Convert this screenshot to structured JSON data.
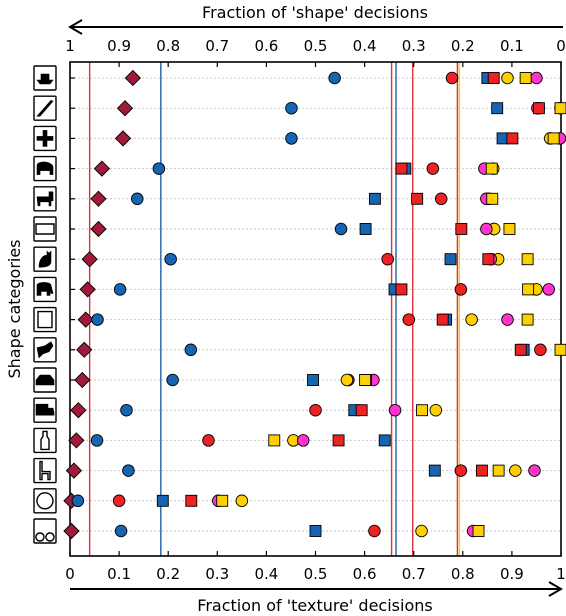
{
  "chart_data": {
    "type": "scatter",
    "top_axis_label": "Fraction of 'shape' decisions",
    "bottom_axis_label": "Fraction of 'texture' decisions",
    "ylabel": "Shape categories",
    "xlim": [
      0,
      1
    ],
    "top_axis_reversed": true,
    "top_ticks": [
      "1",
      "0.9",
      "0.8",
      "0.7",
      "0.6",
      "0.5",
      "0.4",
      "0.3",
      "0.2",
      "0.1",
      "0"
    ],
    "bottom_ticks": [
      "0",
      "0.1",
      "0.2",
      "0.3",
      "0.4",
      "0.5",
      "0.6",
      "0.7",
      "0.8",
      "0.9",
      "1"
    ],
    "grid": "horizontal dotted",
    "categories": [
      "boat",
      "knife",
      "airplane",
      "bear",
      "dog",
      "keyboard",
      "cat",
      "elephant",
      "oven",
      "bird",
      "car",
      "truck",
      "bottle",
      "chair",
      "clock",
      "bicycle"
    ],
    "category_icons": [
      "boat-icon",
      "knife-icon",
      "airplane-icon",
      "bear-icon",
      "dog-icon",
      "keyboard-icon",
      "cat-icon",
      "elephant-icon",
      "oven-icon",
      "bird-icon",
      "car-icon",
      "truck-icon",
      "bottle-icon",
      "chair-icon",
      "clock-icon",
      "bicycle-icon"
    ],
    "colors": {
      "diamond": "#9e1b3c",
      "blue": "#1565b3",
      "red": "#ee2222",
      "yellow": "#ffd000",
      "magenta": "#ff33cc",
      "red_line": "#e0303a",
      "blue_line": "#1f5fa8",
      "yellow_line": "#ffd000",
      "grid": "#cccccc"
    },
    "mean_lines": [
      {
        "x": 0.04,
        "color": "red_line"
      },
      {
        "x": 0.185,
        "color": "blue_line"
      },
      {
        "x": 0.655,
        "color": "red_line"
      },
      {
        "x": 0.664,
        "color": "blue_line"
      },
      {
        "x": 0.698,
        "color": "red_line"
      },
      {
        "x": 0.789,
        "color": "red_line"
      },
      {
        "x": 0.793,
        "color": "yellow_line"
      }
    ],
    "series": [
      {
        "marker": "diamond",
        "color": "diamond",
        "values": [
          0.128,
          0.112,
          0.108,
          0.065,
          0.058,
          0.058,
          0.04,
          0.036,
          0.032,
          0.029,
          0.025,
          0.017,
          0.013,
          0.008,
          0.003,
          0.003
        ]
      },
      {
        "marker": "circle",
        "color": "blue",
        "values": [
          0.539,
          0.451,
          0.451,
          0.181,
          0.137,
          0.552,
          0.205,
          0.102,
          0.056,
          0.246,
          0.209,
          0.115,
          0.055,
          0.119,
          0.016,
          0.104
        ]
      },
      {
        "marker": "circle",
        "color": "red",
        "values": [
          0.778,
          0.955,
          null,
          0.739,
          0.756,
          0.863,
          0.647,
          0.796,
          0.69,
          0.958,
          0.567,
          0.5,
          0.282,
          0.796,
          0.1,
          0.62
        ]
      },
      {
        "marker": "circle",
        "color": "yellow",
        "values": [
          0.891,
          0.999,
          0.978,
          0.862,
          0.854,
          0.864,
          0.872,
          0.95,
          0.818,
          null,
          0.564,
          0.745,
          0.455,
          0.907,
          0.35,
          0.716
        ]
      },
      {
        "marker": "circle",
        "color": "magenta",
        "values": [
          0.95,
          0.952,
          0.998,
          0.844,
          0.848,
          0.848,
          0.857,
          0.975,
          0.891,
          null,
          0.618,
          0.662,
          0.475,
          0.946,
          0.302,
          0.821
        ]
      },
      {
        "marker": "square",
        "color": "blue",
        "values": [
          0.85,
          0.87,
          0.881,
          0.683,
          0.621,
          0.602,
          0.775,
          0.661,
          0.766,
          0.924,
          0.495,
          0.579,
          0.641,
          0.743,
          0.189,
          0.5
        ]
      },
      {
        "marker": "square",
        "color": "red",
        "values": [
          0.863,
          0.955,
          0.901,
          0.675,
          0.707,
          0.797,
          0.852,
          0.675,
          0.759,
          0.918,
          0.603,
          0.594,
          0.547,
          0.839,
          0.247,
          null
        ]
      },
      {
        "marker": "square",
        "color": "yellow",
        "values": [
          0.928,
          0.999,
          0.985,
          0.859,
          0.86,
          0.895,
          0.932,
          0.933,
          0.932,
          0.999,
          0.601,
          0.717,
          0.416,
          0.873,
          0.31,
          0.832
        ]
      }
    ]
  }
}
